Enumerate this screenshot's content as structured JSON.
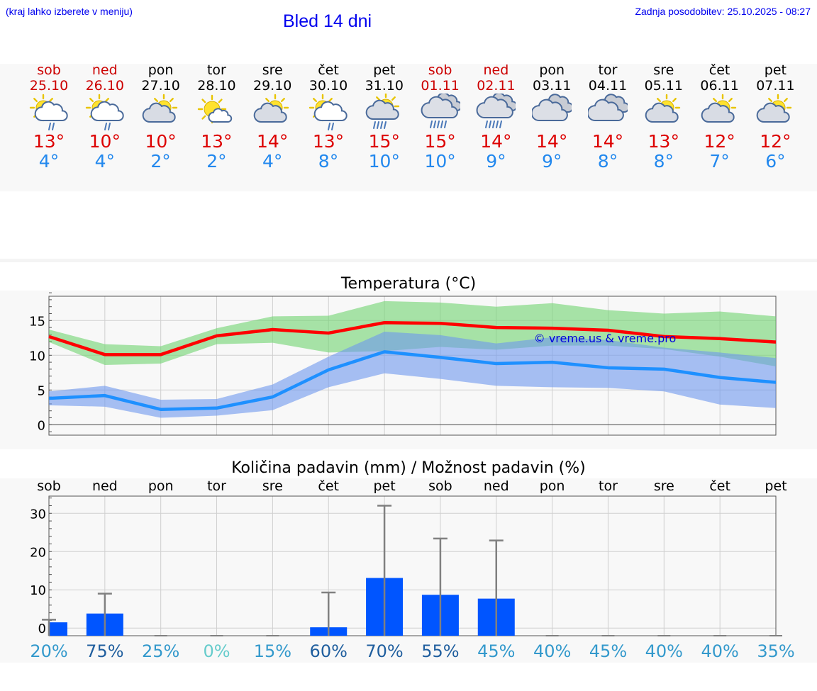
{
  "header": {
    "menu_hint": "(kraj lahko izberete v meniju)",
    "title": "Bled 14 dni",
    "updated": "Zadnja posodobitev: 25.10.2025 - 08:27"
  },
  "days": [
    {
      "name": "sob",
      "date": "25.10",
      "icon": "sun-cloud-light-rain-icon",
      "max": "13°",
      "min": "4°",
      "weekend": true
    },
    {
      "name": "ned",
      "date": "26.10",
      "icon": "sun-cloud-light-rain-icon",
      "max": "10°",
      "min": "4°",
      "weekend": true
    },
    {
      "name": "pon",
      "date": "27.10",
      "icon": "sun-cloud-icon",
      "max": "10°",
      "min": "2°",
      "weekend": false
    },
    {
      "name": "tor",
      "date": "28.10",
      "icon": "sunny-small-cloud-icon",
      "max": "13°",
      "min": "2°",
      "weekend": false
    },
    {
      "name": "sre",
      "date": "29.10",
      "icon": "sun-cloud-icon",
      "max": "14°",
      "min": "4°",
      "weekend": false
    },
    {
      "name": "čet",
      "date": "30.10",
      "icon": "sun-cloud-light-rain-icon",
      "max": "13°",
      "min": "8°",
      "weekend": false
    },
    {
      "name": "pet",
      "date": "31.10",
      "icon": "sun-cloud-rain-icon",
      "max": "15°",
      "min": "10°",
      "weekend": false
    },
    {
      "name": "sob",
      "date": "01.11",
      "icon": "cloud-rain-icon",
      "max": "15°",
      "min": "10°",
      "weekend": true
    },
    {
      "name": "ned",
      "date": "02.11",
      "icon": "cloud-rain-icon",
      "max": "14°",
      "min": "9°",
      "weekend": true
    },
    {
      "name": "pon",
      "date": "03.11",
      "icon": "cloudy-icon",
      "max": "14°",
      "min": "9°",
      "weekend": false
    },
    {
      "name": "tor",
      "date": "04.11",
      "icon": "cloudy-icon",
      "max": "14°",
      "min": "8°",
      "weekend": false
    },
    {
      "name": "sre",
      "date": "05.11",
      "icon": "sun-cloud-icon",
      "max": "13°",
      "min": "8°",
      "weekend": false
    },
    {
      "name": "čet",
      "date": "06.11",
      "icon": "sun-cloud-icon",
      "max": "12°",
      "min": "7°",
      "weekend": false
    },
    {
      "name": "pet",
      "date": "07.11",
      "icon": "sun-cloud-icon",
      "max": "12°",
      "min": "6°",
      "weekend": false
    }
  ],
  "chart_data": [
    {
      "type": "line",
      "title": "Temperatura (°C)",
      "watermark": "© vreme.us & vreme.pro",
      "ylim": [
        -1.5,
        18.5
      ],
      "yticks": [
        0,
        5,
        10,
        15
      ],
      "grid": true,
      "series": [
        {
          "name": "max",
          "color": "#ff0000",
          "values": [
            12.7,
            10.1,
            10.1,
            12.8,
            13.7,
            13.2,
            14.7,
            14.6,
            14.0,
            13.9,
            13.6,
            12.7,
            12.4,
            11.9
          ]
        },
        {
          "name": "max_range_low",
          "values": [
            11.9,
            8.6,
            8.8,
            11.6,
            11.8,
            10.4,
            10.6,
            11.2,
            10.8,
            11.4,
            11.4,
            10.9,
            9.8,
            8.4
          ]
        },
        {
          "name": "max_range_high",
          "values": [
            13.7,
            11.6,
            11.3,
            13.9,
            15.6,
            15.7,
            17.8,
            17.6,
            17.0,
            17.5,
            16.5,
            16.0,
            16.3,
            15.6
          ]
        },
        {
          "name": "min",
          "color": "#1e90ff",
          "values": [
            3.8,
            4.2,
            2.2,
            2.4,
            4.0,
            7.9,
            10.5,
            9.7,
            8.8,
            9.0,
            8.2,
            8.0,
            6.8,
            6.1
          ]
        },
        {
          "name": "min_range_low",
          "values": [
            2.8,
            2.6,
            1.0,
            1.3,
            2.1,
            5.4,
            7.4,
            6.6,
            5.6,
            5.4,
            5.3,
            4.8,
            2.9,
            2.4
          ]
        },
        {
          "name": "min_range_high",
          "values": [
            4.8,
            5.6,
            3.6,
            3.7,
            5.8,
            9.8,
            13.4,
            12.9,
            11.7,
            12.6,
            12.2,
            11.1,
            10.4,
            9.6
          ]
        }
      ]
    },
    {
      "type": "bar",
      "title": "Količina padavin (mm) / Možnost padavin (%)",
      "categories": [
        "sob",
        "ned",
        "pon",
        "tor",
        "sre",
        "čet",
        "pet",
        "sob",
        "ned",
        "pon",
        "tor",
        "sre",
        "čet",
        "pet"
      ],
      "values": [
        1.5,
        3.8,
        0,
        0,
        0,
        0.2,
        13.1,
        8.7,
        7.7,
        0,
        0,
        0,
        0,
        0
      ],
      "error_high": [
        2.2,
        9.0,
        0,
        0,
        0,
        9.3,
        32.0,
        23.4,
        22.9,
        0,
        0,
        0,
        0,
        0
      ],
      "probability": [
        "20%",
        "75%",
        "25%",
        "0%",
        "15%",
        "60%",
        "70%",
        "55%",
        "45%",
        "40%",
        "45%",
        "40%",
        "40%",
        "35%"
      ],
      "probability_colors": [
        "#3399cc",
        "#1f5e9e",
        "#3399cc",
        "#66cccc",
        "#3399cc",
        "#1f5e9e",
        "#1f5e9e",
        "#1f5e9e",
        "#3399cc",
        "#3399cc",
        "#3399cc",
        "#3399cc",
        "#3399cc",
        "#3399cc"
      ],
      "ylim": [
        -2,
        34.5
      ],
      "yticks": [
        0,
        10,
        20,
        30
      ],
      "bar_color": "#0055ff",
      "whisker_color": "#808080"
    }
  ]
}
